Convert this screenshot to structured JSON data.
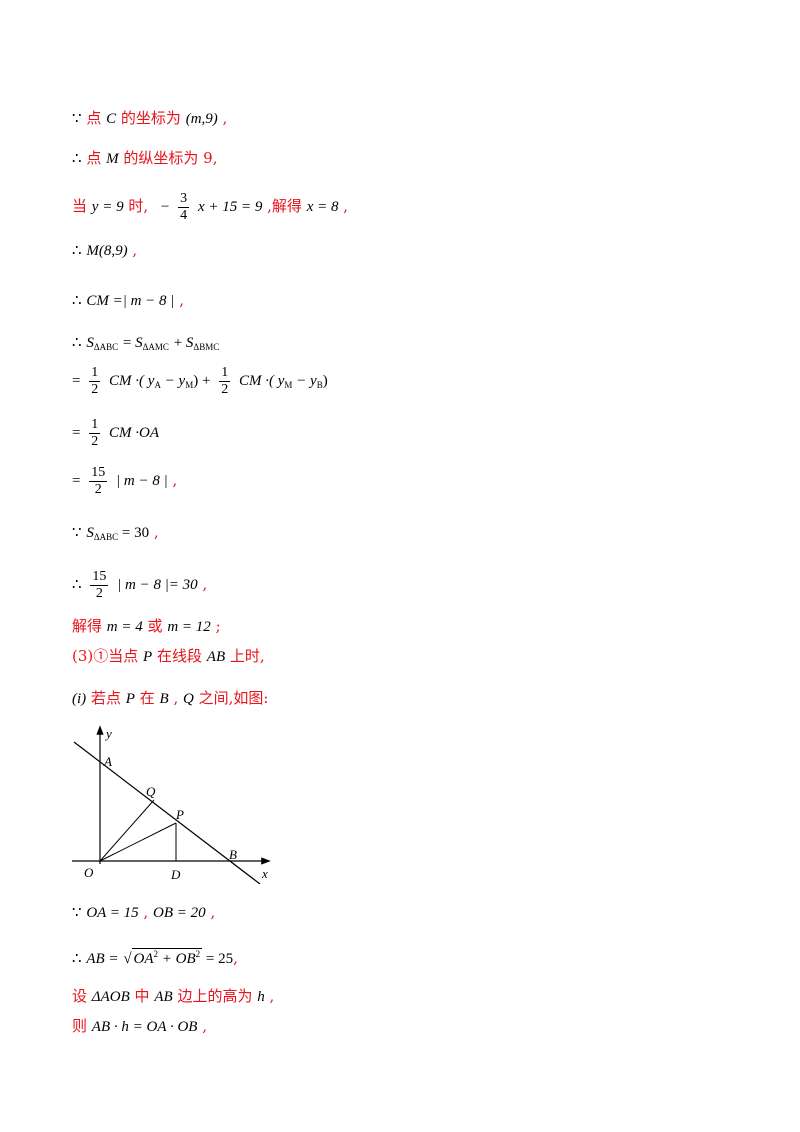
{
  "lines": [
    {
      "k": "l1",
      "sym": "∵",
      "t1": "点",
      "v1": "C",
      "t2": "的坐标为",
      "v2": "(m,9)",
      "t3": ","
    },
    {
      "k": "l2",
      "sym": "∴",
      "t1": "点",
      "v1": "M",
      "t2": "的纵坐标为 9,"
    },
    {
      "k": "l3",
      "t1": "当",
      "v1": "y = 9",
      "t2": "时,",
      "e1": "−",
      "fn": "3",
      "fd": "4",
      "e2": "x + 15 = 9",
      "t3": ",解得",
      "v2": "x = 8",
      "t4": ","
    },
    {
      "k": "l4",
      "sym": "∴",
      "v1": "M(8,9)",
      "t1": ","
    },
    {
      "k": "l5",
      "sym": "∴",
      "v1": "CM =| m − 8 |",
      "t1": ","
    },
    {
      "k": "l6",
      "sym": "∴",
      "s1": "S",
      "s1sub": "ΔABC",
      "eq": " = ",
      "s2": "S",
      "s2sub": "ΔAMC",
      "plus": " + ",
      "s3": "S",
      "s3sub": "ΔBMC"
    },
    {
      "k": "l7",
      "eq": "=",
      "fn1": "1",
      "fd1": "2",
      "p1": "CM ·( y",
      "p1s": "A",
      "p2": " − y",
      "p2s": "M",
      "p3": ") +",
      "fn2": "1",
      "fd2": "2",
      "p4": "CM ·( y",
      "p4s": "M",
      "p5": " − y",
      "p5s": "B",
      "p6": ")"
    },
    {
      "k": "l8",
      "eq": "=",
      "fn": "1",
      "fd": "2",
      "v": "CM ·OA"
    },
    {
      "k": "l9",
      "eq": "=",
      "fn": "15",
      "fd": "2",
      "v": "| m − 8 |",
      "t": ","
    },
    {
      "k": "l10",
      "sym": "∵",
      "s": "S",
      "ssub": "ΔABC",
      "v": " = 30",
      "t": ","
    },
    {
      "k": "l11",
      "sym": "∴",
      "fn": "15",
      "fd": "2",
      "v": "| m − 8 |= 30",
      "t": ","
    },
    {
      "k": "l12",
      "t1": "解得",
      "v1": "m = 4",
      "t2": "或",
      "v2": "m = 12",
      "t3": ";"
    },
    {
      "k": "l13",
      "t1": "(3)①当点",
      "v1": "P",
      "t2": "在线段",
      "v2": "AB",
      "t3": "上时,"
    },
    {
      "k": "l14",
      "v0": "(i)",
      "t1": "若点",
      "v1": "P",
      "t2": "在",
      "v2": "B",
      "t3": ",",
      "v3": "Q",
      "t4": "之间,如图:"
    },
    {
      "k": "l15",
      "sym": "∵",
      "v1": "OA = 15",
      "t1": ",",
      "v2": "OB = 20",
      "t2": ","
    },
    {
      "k": "l16",
      "sym": "∴",
      "v1": "AB =",
      "sq1": "OA",
      "sq1s": "2",
      "sq2": " + OB",
      "sq2s": "2",
      "v2": " = 25",
      "t1": ","
    },
    {
      "k": "l17",
      "t1": "设",
      "v1": "ΔAOB",
      "t2": "中",
      "v2": "AB",
      "t3": "边上的高为",
      "v3": "h",
      "t4": ","
    },
    {
      "k": "l18",
      "t1": "则",
      "v1": "AB · h = OA · OB",
      "t2": ","
    }
  ],
  "figure": {
    "labels": {
      "y": "y",
      "x": "x",
      "A": "A",
      "Q": "Q",
      "P": "P",
      "B": "B",
      "O": "O",
      "D": "D"
    }
  }
}
